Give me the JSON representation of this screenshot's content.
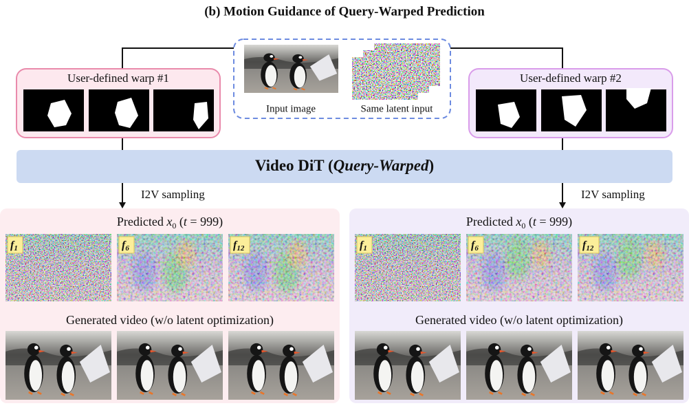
{
  "title": "(b)  Motion Guidance of Query-Warped Prediction",
  "center": {
    "input_label": "Input image",
    "latent_label": "Same latent input"
  },
  "warps": [
    {
      "label": "User-defined warp #1"
    },
    {
      "label": "User-defined warp #2"
    }
  ],
  "model": {
    "name": "Video DiT (",
    "emphasis": "Query-Warped",
    "close": ")"
  },
  "panels": [
    {
      "sampling": "I2V sampling",
      "predicted": {
        "text": "Predicted ",
        "var": "x",
        "sub": "0",
        "open": " (",
        "t": "t",
        "rest": " = 999)"
      },
      "frames": [
        {
          "f": "f",
          "sub": "1"
        },
        {
          "f": "f",
          "sub": "6"
        },
        {
          "f": "f",
          "sub": "12"
        }
      ],
      "generated": "Generated video (w/o latent optimization)"
    },
    {
      "sampling": "I2V sampling",
      "predicted": {
        "text": "Predicted ",
        "var": "x",
        "sub": "0",
        "open": " (",
        "t": "t",
        "rest": " = 999)"
      },
      "frames": [
        {
          "f": "f",
          "sub": "1"
        },
        {
          "f": "f",
          "sub": "6"
        },
        {
          "f": "f",
          "sub": "12"
        }
      ],
      "generated": "Generated video (w/o latent optimization)"
    }
  ]
}
